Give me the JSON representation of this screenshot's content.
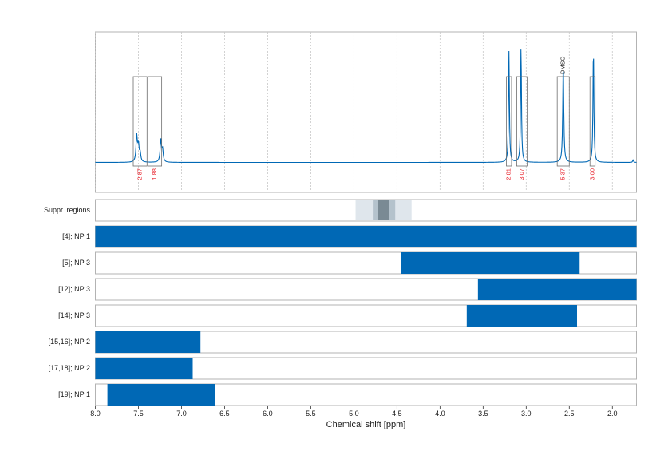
{
  "chart_data": {
    "type": "line",
    "title": "",
    "xlabel": "Chemical shift [ppm]",
    "xlim": [
      8.0,
      1.72
    ],
    "x_reversed": true,
    "xticks": [
      "8.0",
      "7.5",
      "7.0",
      "6.5",
      "6.0",
      "5.5",
      "5.0",
      "4.5",
      "4.0",
      "3.5",
      "3.0",
      "2.5",
      "2.0"
    ],
    "spectrum": {
      "color": "#0068b5",
      "peaks": [
        {
          "ppm": 7.52,
          "height": 0.22,
          "width": 0.009
        },
        {
          "ppm": 7.5,
          "height": 0.14,
          "width": 0.009
        },
        {
          "ppm": 7.48,
          "height": 0.07,
          "width": 0.009
        },
        {
          "ppm": 7.24,
          "height": 0.19,
          "width": 0.009
        },
        {
          "ppm": 7.22,
          "height": 0.1,
          "width": 0.009
        },
        {
          "ppm": 3.2,
          "height": 0.93,
          "width": 0.006
        },
        {
          "ppm": 3.06,
          "height": 0.98,
          "width": 0.006
        },
        {
          "ppm": 2.57,
          "height": 0.82,
          "width": 0.007
        },
        {
          "ppm": 2.22,
          "height": 0.97,
          "width": 0.006
        },
        {
          "ppm": 1.76,
          "height": 0.02,
          "width": 0.006
        }
      ]
    },
    "integration_regions": [
      {
        "start": 7.56,
        "end": 7.4,
        "label": "2.87"
      },
      {
        "start": 7.39,
        "end": 7.23,
        "label": "1.88"
      },
      {
        "start": 3.23,
        "end": 3.17,
        "label": "2.81"
      },
      {
        "start": 3.11,
        "end": 2.99,
        "label": "3.07"
      },
      {
        "start": 2.64,
        "end": 2.5,
        "label": "5.37",
        "annotation": "DMSO"
      },
      {
        "start": 2.26,
        "end": 2.2,
        "label": "3.00"
      }
    ],
    "suppressed_regions": {
      "label": "Suppr. regions",
      "bands": [
        {
          "start": 4.98,
          "end": 4.33,
          "shade": "#dfe6ec"
        },
        {
          "start": 4.78,
          "end": 4.52,
          "shade": "#b4c2cc"
        },
        {
          "start": 4.72,
          "end": 4.59,
          "shade": "#7a8a94"
        }
      ]
    },
    "range_tracks": [
      {
        "label": "[4]; NP 1",
        "start": 8.0,
        "end": 1.72
      },
      {
        "label": "[5]; NP 3",
        "start": 4.45,
        "end": 2.38
      },
      {
        "label": "[12]; NP 3",
        "start": 3.56,
        "end": 1.72
      },
      {
        "label": "[14]; NP 3",
        "start": 3.69,
        "end": 2.41
      },
      {
        "label": "[15,16]; NP 2",
        "start": 8.0,
        "end": 6.78
      },
      {
        "label": "[17,18]; NP 2",
        "start": 8.0,
        "end": 6.87
      },
      {
        "label": "[19]; NP 1",
        "start": 7.86,
        "end": 6.61
      }
    ],
    "colors": {
      "track_fill": "#0068b5",
      "integral_label": "#e8212b",
      "panel_border": "#b3b3b3",
      "gridline": "#c8c8c8"
    },
    "grid": true
  }
}
